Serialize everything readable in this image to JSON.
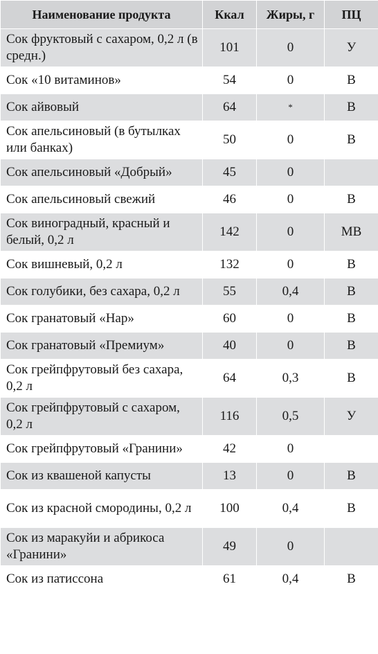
{
  "table": {
    "headers": [
      "Наименование продукта",
      "Ккал",
      "Жиры, г",
      "ПЦ"
    ],
    "rows": [
      {
        "name": "Сок фруктовый с сахаром, 0,2 л (в средн.)",
        "kcal": "101",
        "fat": "0",
        "pc": "У",
        "lines": 2
      },
      {
        "name": "Сок «10 витаминов»",
        "kcal": "54",
        "fat": "0",
        "pc": "В",
        "lines": 1
      },
      {
        "name": "Сок айвовый",
        "kcal": "64",
        "fat": "*",
        "pc": "В",
        "lines": 1
      },
      {
        "name": "Сок апельсиновый (в бутылках или банках)",
        "kcal": "50",
        "fat": "0",
        "pc": "В",
        "lines": 2
      },
      {
        "name": "Сок апельсиновый «Добрый»",
        "kcal": "45",
        "fat": "0",
        "pc": "",
        "lines": 1
      },
      {
        "name": "Сок апельсиновый свежий",
        "kcal": "46",
        "fat": "0",
        "pc": "В",
        "lines": 1
      },
      {
        "name": "Сок виноградный, красный и белый, 0,2 л",
        "kcal": "142",
        "fat": "0",
        "pc": "МВ",
        "lines": 2
      },
      {
        "name": "Сок вишневый, 0,2 л",
        "kcal": "132",
        "fat": "0",
        "pc": "В",
        "lines": 1
      },
      {
        "name": "Сок голубики, без сахара, 0,2 л",
        "kcal": "55",
        "fat": "0,4",
        "pc": "В",
        "lines": 1
      },
      {
        "name": "Сок гранатовый «Нар»",
        "kcal": "60",
        "fat": "0",
        "pc": "В",
        "lines": 1
      },
      {
        "name": "Сок гранатовый «Премиум»",
        "kcal": "40",
        "fat": "0",
        "pc": "В",
        "lines": 1
      },
      {
        "name": "Сок грейпфрутовый без сахара, 0,2 л",
        "kcal": "64",
        "fat": "0,3",
        "pc": "В",
        "lines": 2
      },
      {
        "name": "Сок грейпфрутовый с сахаром, 0,2 л",
        "kcal": "116",
        "fat": "0,5",
        "pc": "У",
        "lines": 2
      },
      {
        "name": "Сок грейпфрутовый «Гранини»",
        "kcal": "42",
        "fat": "0",
        "pc": "",
        "lines": 1
      },
      {
        "name": "Сок из квашеной капусты",
        "kcal": "13",
        "fat": "0",
        "pc": "В",
        "lines": 1
      },
      {
        "name": "Сок из красной смородины, 0,2 л",
        "kcal": "100",
        "fat": "0,4",
        "pc": "В",
        "lines": 2
      },
      {
        "name": "Сок из маракуйи и абрикоса «Гранини»",
        "kcal": "49",
        "fat": "0",
        "pc": "",
        "lines": 2
      },
      {
        "name": "Сок из патиссона",
        "kcal": "61",
        "fat": "0,4",
        "pc": "В",
        "lines": 1
      }
    ]
  }
}
